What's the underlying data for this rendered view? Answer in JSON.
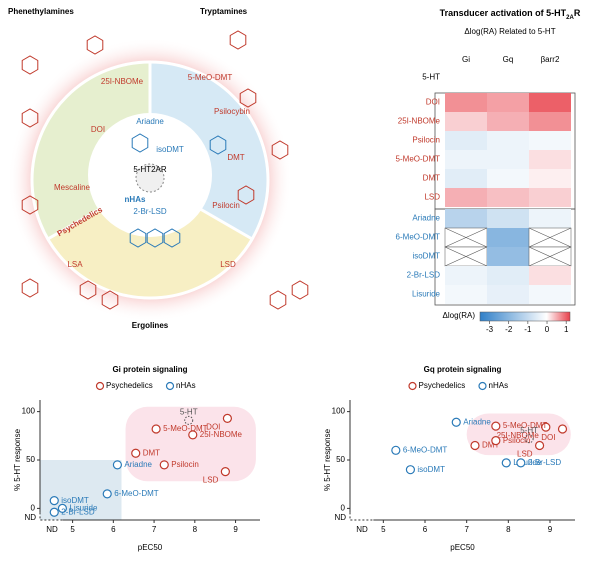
{
  "diagram": {
    "groups": [
      "Phenethylamines",
      "Tryptamines",
      "Ergolines"
    ],
    "sector_labels": [
      "25I-NBOMe",
      "DOI",
      "Mescaline",
      "5-MeO-DMT",
      "Psilocybin",
      "DMT",
      "Psilocin",
      "LSA",
      "LSD"
    ],
    "psychedelics": "Psychedelics",
    "center_labels": [
      "Ariadne",
      "isoDMT",
      "nHAs",
      "2-Br-LSD"
    ],
    "receptor": "5-HT2AR"
  },
  "chart_data": [
    {
      "type": "heatmap",
      "title": "Transducer activation of 5-HT",
      "title_sub": "2A",
      "title_end": "R",
      "subtitle": "Δlog(RA) Related to 5-HT",
      "columns": [
        "Gi",
        "Gq",
        "βarr2"
      ],
      "rows": [
        "5-HT",
        "DOI",
        "25I-NBOMe",
        "Psilocin",
        "5-MeO-DMT",
        "DMT",
        "LSD",
        "Ariadne",
        "6-MeO-DMT",
        "isoDMT",
        "2-Br-LSD",
        "Lisuride"
      ],
      "values": [
        [
          0,
          0,
          0
        ],
        [
          0.7,
          0.6,
          1.0
        ],
        [
          0.3,
          0.5,
          0.7
        ],
        [
          -0.5,
          -0.3,
          -0.2
        ],
        [
          -0.3,
          -0.3,
          0.2
        ],
        [
          -0.5,
          -0.2,
          0.1
        ],
        [
          0.5,
          0.4,
          0.3
        ],
        [
          -1.2,
          -0.8,
          -0.3
        ],
        [
          null,
          -2.0,
          null
        ],
        [
          null,
          -1.8,
          null
        ],
        [
          -0.3,
          -0.5,
          0.2
        ],
        [
          -0.2,
          -0.4,
          -0.2
        ]
      ],
      "colorbar_label": "Δlog(RA)",
      "clim": [
        -3.5,
        1.2
      ],
      "cticks": [
        -3,
        -2,
        -1,
        0,
        1
      ],
      "neg_color": "#2f7fc8",
      "pos_color": "#e8404a"
    },
    {
      "type": "scatter",
      "title": "Gi protein signaling",
      "xlabel": "pEC50",
      "ylabel": "% 5-HT response",
      "nd": "ND",
      "xlim": [
        4.2,
        9.6
      ],
      "xticks": [
        5,
        6,
        7,
        8,
        9
      ],
      "ylim": [
        -12,
        112
      ],
      "yticks": [
        0,
        50,
        100
      ],
      "reference": {
        "label": "5-HT",
        "x": 7.85,
        "value": 91
      },
      "series": [
        {
          "name": "Psychedelics",
          "color": "#c0392b",
          "labels": [
            "DOI",
            "5-MeO-DMT",
            "25I-NBOMe",
            "DMT",
            "Psilocin",
            "LSD"
          ],
          "x": [
            8.8,
            7.05,
            7.95,
            6.55,
            7.25,
            8.75
          ],
          "values": [
            93,
            82,
            76,
            57,
            45,
            38
          ]
        },
        {
          "name": "nHAs",
          "color": "#2a7ab8",
          "labels": [
            "Ariadne",
            "6-MeO-DMT",
            "isoDMT",
            "Lisuride",
            "2-Br-LSD"
          ],
          "x": [
            6.1,
            5.85,
            4.55,
            4.75,
            4.55
          ],
          "values": [
            45,
            15,
            8,
            0,
            -4
          ]
        }
      ]
    },
    {
      "type": "scatter",
      "title": "Gq protein signaling",
      "xlabel": "pEC50",
      "ylabel": "% 5-HT response",
      "nd": "ND",
      "xlim": [
        4.2,
        9.6
      ],
      "xticks": [
        5,
        6,
        7,
        8,
        9
      ],
      "ylim": [
        -12,
        112
      ],
      "yticks": [
        0,
        50,
        100
      ],
      "reference": {
        "label": "5-HT",
        "x": 8.5,
        "value": 72
      },
      "series": [
        {
          "name": "Psychedelics",
          "color": "#c0392b",
          "labels": [
            "25I-NBOMe",
            "DOI",
            "5-MeO-DMT",
            "DMT",
            "LSD",
            "Psilocin"
          ],
          "x": [
            8.9,
            9.3,
            7.7,
            7.2,
            8.75,
            7.7
          ],
          "values": [
            84,
            82,
            85,
            65,
            65,
            70
          ]
        },
        {
          "name": "nHAs",
          "color": "#2a7ab8",
          "labels": [
            "Ariadne",
            "6-MeO-DMT",
            "isoDMT",
            "Lisuride",
            "2-Br-LSD"
          ],
          "x": [
            6.75,
            5.3,
            5.65,
            7.95,
            8.3
          ],
          "values": [
            89,
            60,
            40,
            47,
            47
          ]
        }
      ]
    }
  ]
}
